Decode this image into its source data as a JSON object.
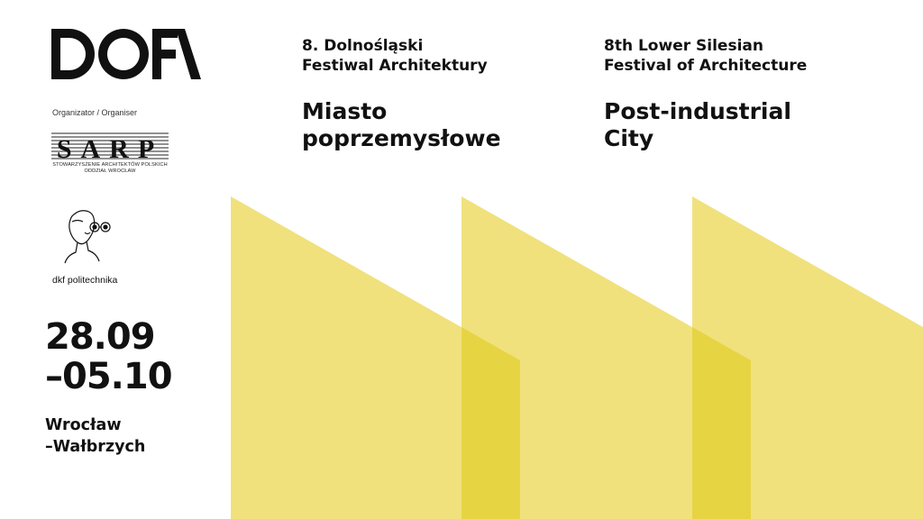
{
  "brand": {
    "logo_text": "DOFA",
    "accent": "#f0e17d",
    "accent_overlap": "#e7d443"
  },
  "organizer": {
    "label": "Organizator / Organiser",
    "logo_text": "SARP",
    "sub_line1": "STOWARZYSZENIE ARCHITEKTÓW POLSKICH",
    "sub_line2": "ODDZIAŁ WROCŁAW"
  },
  "partner": {
    "label": "dkf politechnika"
  },
  "event": {
    "date_line1": "28.09",
    "date_line2": "–05.10",
    "city_line1": "Wrocław",
    "city_line2": "–Wałbrzych"
  },
  "polish": {
    "subtitle_line1": "8. Dolnośląski",
    "subtitle_line2": "Festiwal Architektury",
    "title_line1": "Miasto",
    "title_line2": "poprzemysłowe"
  },
  "english": {
    "subtitle_line1": "8th Lower Silesian",
    "subtitle_line2": "Festival of Architecture",
    "title_line1": "Post-industrial",
    "title_line2": "City"
  }
}
